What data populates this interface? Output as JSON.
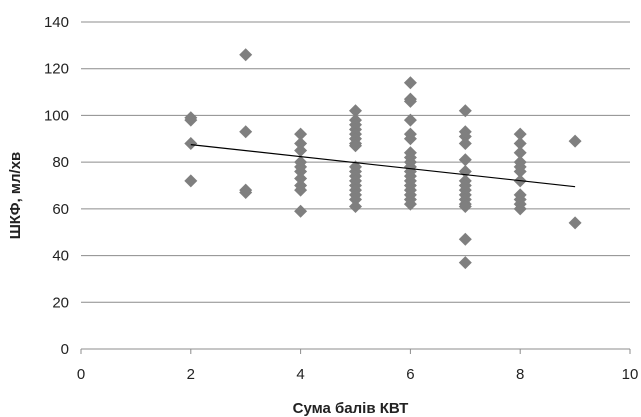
{
  "chart_data": {
    "type": "scatter",
    "xlabel": "Сума балів КВТ",
    "ylabel": "ШКФ, мл/хв",
    "xlim": [
      0,
      10
    ],
    "ylim": [
      0,
      140
    ],
    "x_ticks": [
      0,
      2,
      4,
      6,
      8,
      10
    ],
    "y_ticks": [
      0,
      20,
      40,
      60,
      80,
      100,
      120,
      140
    ],
    "grid": "horizontal",
    "legend": "none",
    "marker_color": "#7f7f7f",
    "trendline_color": "#000000",
    "trendline": {
      "x": [
        2,
        9
      ],
      "y": [
        87.5,
        69.5
      ]
    },
    "points": [
      {
        "x": 2,
        "y": 99
      },
      {
        "x": 2,
        "y": 98
      },
      {
        "x": 2,
        "y": 88
      },
      {
        "x": 2,
        "y": 72
      },
      {
        "x": 3,
        "y": 126
      },
      {
        "x": 3,
        "y": 93
      },
      {
        "x": 3,
        "y": 68
      },
      {
        "x": 3,
        "y": 67
      },
      {
        "x": 4,
        "y": 92
      },
      {
        "x": 4,
        "y": 88
      },
      {
        "x": 4,
        "y": 85
      },
      {
        "x": 4,
        "y": 80
      },
      {
        "x": 4,
        "y": 78
      },
      {
        "x": 4,
        "y": 76
      },
      {
        "x": 4,
        "y": 73
      },
      {
        "x": 4,
        "y": 70
      },
      {
        "x": 4,
        "y": 68
      },
      {
        "x": 4,
        "y": 59
      },
      {
        "x": 5,
        "y": 102
      },
      {
        "x": 5,
        "y": 98
      },
      {
        "x": 5,
        "y": 96
      },
      {
        "x": 5,
        "y": 94
      },
      {
        "x": 5,
        "y": 92
      },
      {
        "x": 5,
        "y": 90
      },
      {
        "x": 5,
        "y": 88
      },
      {
        "x": 5,
        "y": 87
      },
      {
        "x": 5,
        "y": 78
      },
      {
        "x": 5,
        "y": 76
      },
      {
        "x": 5,
        "y": 74
      },
      {
        "x": 5,
        "y": 72
      },
      {
        "x": 5,
        "y": 70
      },
      {
        "x": 5,
        "y": 68
      },
      {
        "x": 5,
        "y": 66
      },
      {
        "x": 5,
        "y": 64
      },
      {
        "x": 5,
        "y": 61
      },
      {
        "x": 6,
        "y": 114
      },
      {
        "x": 6,
        "y": 107
      },
      {
        "x": 6,
        "y": 106
      },
      {
        "x": 6,
        "y": 98
      },
      {
        "x": 6,
        "y": 92
      },
      {
        "x": 6,
        "y": 90
      },
      {
        "x": 6,
        "y": 84
      },
      {
        "x": 6,
        "y": 82
      },
      {
        "x": 6,
        "y": 80
      },
      {
        "x": 6,
        "y": 78
      },
      {
        "x": 6,
        "y": 76
      },
      {
        "x": 6,
        "y": 74
      },
      {
        "x": 6,
        "y": 72
      },
      {
        "x": 6,
        "y": 70
      },
      {
        "x": 6,
        "y": 68
      },
      {
        "x": 6,
        "y": 66
      },
      {
        "x": 6,
        "y": 64
      },
      {
        "x": 6,
        "y": 62
      },
      {
        "x": 7,
        "y": 102
      },
      {
        "x": 7,
        "y": 93
      },
      {
        "x": 7,
        "y": 91
      },
      {
        "x": 7,
        "y": 88
      },
      {
        "x": 7,
        "y": 81
      },
      {
        "x": 7,
        "y": 76
      },
      {
        "x": 7,
        "y": 72
      },
      {
        "x": 7,
        "y": 70
      },
      {
        "x": 7,
        "y": 68
      },
      {
        "x": 7,
        "y": 66
      },
      {
        "x": 7,
        "y": 64
      },
      {
        "x": 7,
        "y": 62
      },
      {
        "x": 7,
        "y": 61
      },
      {
        "x": 7,
        "y": 47
      },
      {
        "x": 7,
        "y": 37
      },
      {
        "x": 8,
        "y": 92
      },
      {
        "x": 8,
        "y": 88
      },
      {
        "x": 8,
        "y": 84
      },
      {
        "x": 8,
        "y": 80
      },
      {
        "x": 8,
        "y": 78
      },
      {
        "x": 8,
        "y": 76
      },
      {
        "x": 8,
        "y": 72
      },
      {
        "x": 8,
        "y": 66
      },
      {
        "x": 8,
        "y": 64
      },
      {
        "x": 8,
        "y": 62
      },
      {
        "x": 8,
        "y": 60
      },
      {
        "x": 9,
        "y": 89
      },
      {
        "x": 9,
        "y": 54
      }
    ]
  }
}
